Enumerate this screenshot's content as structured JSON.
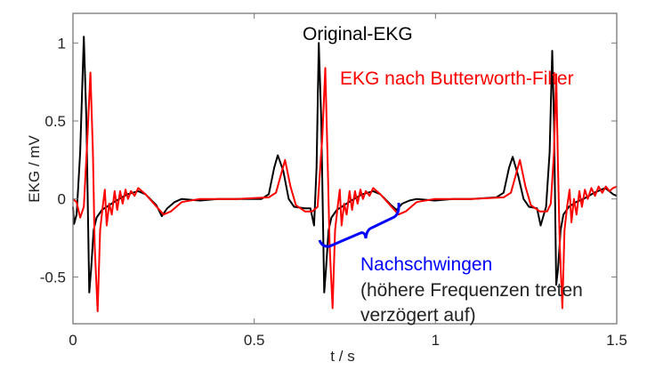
{
  "chart_data": {
    "type": "line",
    "title": "",
    "xlabel": "t / s",
    "ylabel": "EKG / mV",
    "xlim": [
      0,
      1.5
    ],
    "ylim": [
      -0.8,
      1.19
    ],
    "xticks": [
      "0",
      "0.5",
      "1",
      "1.5"
    ],
    "xtick_values": [
      0,
      0.5,
      1,
      1.5
    ],
    "yticks": [
      "-0.5",
      "0",
      "0.5",
      "1"
    ],
    "ytick_values": [
      -0.5,
      0,
      0.5,
      1
    ],
    "grid": false,
    "series": [
      {
        "name": "Original-EKG",
        "color": "#000000",
        "points": [
          [
            0,
            -0.05
          ],
          [
            0.003,
            -0.16
          ],
          [
            0.01,
            -0.1
          ],
          [
            0.02,
            0.3
          ],
          [
            0.03,
            1.04
          ],
          [
            0.037,
            0.5
          ],
          [
            0.045,
            -0.6
          ],
          [
            0.05,
            -0.45
          ],
          [
            0.057,
            -0.2
          ],
          [
            0.065,
            -0.12
          ],
          [
            0.08,
            -0.07
          ],
          [
            0.1,
            -0.04
          ],
          [
            0.12,
            -0.01
          ],
          [
            0.15,
            0.03
          ],
          [
            0.18,
            0.05
          ],
          [
            0.2,
            0.03
          ],
          [
            0.23,
            -0.04
          ],
          [
            0.245,
            -0.11
          ],
          [
            0.26,
            -0.06
          ],
          [
            0.28,
            -0.02
          ],
          [
            0.3,
            0
          ],
          [
            0.35,
            -0.01
          ],
          [
            0.4,
            0
          ],
          [
            0.45,
            0
          ],
          [
            0.52,
            0
          ],
          [
            0.54,
            0.03
          ],
          [
            0.555,
            0.2
          ],
          [
            0.565,
            0.28
          ],
          [
            0.58,
            0.18
          ],
          [
            0.595,
            0
          ],
          [
            0.61,
            -0.05
          ],
          [
            0.64,
            -0.06
          ],
          [
            0.655,
            -0.06
          ],
          [
            0.665,
            -0.17
          ],
          [
            0.672,
            0.2
          ],
          [
            0.678,
            1.0
          ],
          [
            0.685,
            0.5
          ],
          [
            0.693,
            -0.6
          ],
          [
            0.698,
            -0.45
          ],
          [
            0.705,
            -0.2
          ],
          [
            0.713,
            -0.12
          ],
          [
            0.728,
            -0.07
          ],
          [
            0.748,
            -0.04
          ],
          [
            0.768,
            -0.01
          ],
          [
            0.798,
            0.03
          ],
          [
            0.828,
            0.05
          ],
          [
            0.848,
            0.03
          ],
          [
            0.878,
            -0.04
          ],
          [
            0.893,
            -0.07
          ],
          [
            0.908,
            -0.03
          ],
          [
            0.928,
            -0.01
          ],
          [
            0.948,
            0
          ],
          [
            0.998,
            -0.01
          ],
          [
            1.048,
            0
          ],
          [
            1.098,
            0
          ],
          [
            1.168,
            0.01
          ],
          [
            1.188,
            0.04
          ],
          [
            1.203,
            0.2
          ],
          [
            1.213,
            0.27
          ],
          [
            1.228,
            0.15
          ],
          [
            1.243,
            0
          ],
          [
            1.258,
            -0.05
          ],
          [
            1.28,
            -0.06
          ],
          [
            1.29,
            -0.17
          ],
          [
            1.305,
            -0.05
          ],
          [
            1.315,
            0.3
          ],
          [
            1.322,
            0.95
          ],
          [
            1.327,
            0.5
          ],
          [
            1.333,
            -0.55
          ],
          [
            1.338,
            -0.45
          ],
          [
            1.345,
            -0.2
          ],
          [
            1.353,
            -0.1
          ],
          [
            1.368,
            -0.05
          ],
          [
            1.388,
            -0.02
          ],
          [
            1.408,
            0
          ],
          [
            1.438,
            0.04
          ],
          [
            1.468,
            0.07
          ],
          [
            1.49,
            0.03
          ],
          [
            1.5,
            0.02
          ]
        ]
      },
      {
        "name": "EKG nach Butterworth-Filter",
        "color": "#ff0000",
        "points": [
          [
            0,
            0
          ],
          [
            0.01,
            -0.02
          ],
          [
            0.02,
            -0.12
          ],
          [
            0.03,
            -0.05
          ],
          [
            0.04,
            0.4
          ],
          [
            0.048,
            0.81
          ],
          [
            0.055,
            0.3
          ],
          [
            0.06,
            -0.3
          ],
          [
            0.068,
            -0.72
          ],
          [
            0.075,
            -0.2
          ],
          [
            0.082,
            -0.05
          ],
          [
            0.088,
            0.06
          ],
          [
            0.093,
            -0.17
          ],
          [
            0.1,
            -0.03
          ],
          [
            0.107,
            -0.1
          ],
          [
            0.115,
            0.05
          ],
          [
            0.122,
            -0.07
          ],
          [
            0.13,
            0.05
          ],
          [
            0.137,
            -0.03
          ],
          [
            0.145,
            0.06
          ],
          [
            0.152,
            0
          ],
          [
            0.16,
            0.05
          ],
          [
            0.17,
            0.02
          ],
          [
            0.18,
            0.07
          ],
          [
            0.2,
            0.03
          ],
          [
            0.25,
            -0.1
          ],
          [
            0.27,
            -0.08
          ],
          [
            0.3,
            -0.02
          ],
          [
            0.35,
            0
          ],
          [
            0.45,
            0
          ],
          [
            0.54,
            0.01
          ],
          [
            0.56,
            0.04
          ],
          [
            0.585,
            0.25
          ],
          [
            0.6,
            0.08
          ],
          [
            0.615,
            -0.04
          ],
          [
            0.64,
            -0.08
          ],
          [
            0.66,
            -0.08
          ],
          [
            0.675,
            -0.05
          ],
          [
            0.688,
            0.4
          ],
          [
            0.696,
            0.84
          ],
          [
            0.702,
            0.3
          ],
          [
            0.708,
            -0.3
          ],
          [
            0.716,
            -0.7
          ],
          [
            0.723,
            -0.2
          ],
          [
            0.73,
            -0.05
          ],
          [
            0.736,
            0.06
          ],
          [
            0.741,
            -0.17
          ],
          [
            0.748,
            -0.03
          ],
          [
            0.755,
            -0.1
          ],
          [
            0.763,
            0.05
          ],
          [
            0.77,
            -0.07
          ],
          [
            0.778,
            0.05
          ],
          [
            0.785,
            -0.03
          ],
          [
            0.793,
            0.06
          ],
          [
            0.8,
            0
          ],
          [
            0.808,
            0.05
          ],
          [
            0.818,
            0.02
          ],
          [
            0.828,
            0.07
          ],
          [
            0.848,
            0.03
          ],
          [
            0.898,
            -0.1
          ],
          [
            0.918,
            -0.08
          ],
          [
            0.948,
            -0.02
          ],
          [
            0.998,
            0
          ],
          [
            1.098,
            0
          ],
          [
            1.188,
            0.01
          ],
          [
            1.208,
            0.04
          ],
          [
            1.233,
            0.25
          ],
          [
            1.248,
            0.08
          ],
          [
            1.263,
            -0.04
          ],
          [
            1.288,
            -0.08
          ],
          [
            1.308,
            -0.08
          ],
          [
            1.318,
            -0.03
          ],
          [
            1.327,
            0.3
          ],
          [
            1.333,
            0.8
          ],
          [
            1.338,
            0.2
          ],
          [
            1.343,
            -0.3
          ],
          [
            1.35,
            -0.7
          ],
          [
            1.356,
            -0.2
          ],
          [
            1.363,
            -0.05
          ],
          [
            1.37,
            0.06
          ],
          [
            1.375,
            -0.15
          ],
          [
            1.382,
            0
          ],
          [
            1.389,
            -0.1
          ],
          [
            1.397,
            0.05
          ],
          [
            1.404,
            -0.05
          ],
          [
            1.412,
            0.06
          ],
          [
            1.42,
            0
          ],
          [
            1.43,
            0.07
          ],
          [
            1.44,
            0.02
          ],
          [
            1.45,
            0.08
          ],
          [
            1.46,
            0.04
          ],
          [
            1.47,
            0.08
          ],
          [
            1.48,
            0.05
          ],
          [
            1.49,
            0.07
          ],
          [
            1.5,
            0.08
          ]
        ]
      }
    ],
    "annotations": {
      "original_label": "Original-EKG",
      "filtered_label": "EKG nach Butterworth-Filter",
      "ringing_label": "Nachschwingen",
      "ringing_note_line1": "(höhere Frequenzen treten",
      "ringing_note_line2": "verzögert auf)",
      "ringing_color": "#0000ff"
    }
  }
}
